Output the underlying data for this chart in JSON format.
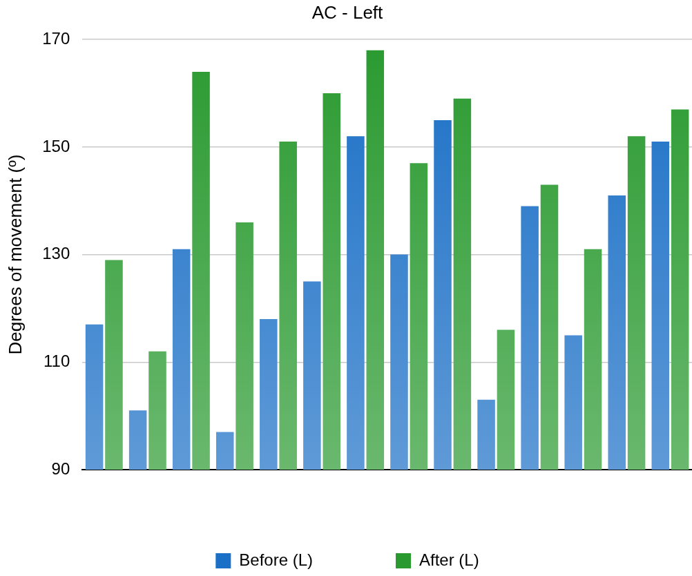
{
  "chart_data": {
    "type": "bar",
    "title": "AC - Left",
    "ylabel": "Degrees of movement (º)",
    "categories": [
      null,
      null,
      null,
      null,
      null,
      null,
      null,
      null,
      null,
      null,
      null,
      null,
      null,
      null
    ],
    "series": [
      {
        "name": "Before (L)",
        "color": "#1a6fc6",
        "values": [
          117,
          101,
          131,
          97,
          118,
          125,
          152,
          130,
          155,
          103,
          139,
          115,
          141,
          151
        ]
      },
      {
        "name": "After (L)",
        "color": "#2a9a30",
        "values": [
          129,
          112,
          164,
          136,
          151,
          160,
          168,
          147,
          159,
          116,
          143,
          131,
          152,
          157
        ]
      }
    ],
    "ylim": [
      90,
      170
    ],
    "yticks": [
      90,
      110,
      130,
      150,
      170
    ],
    "grid": "y",
    "legend": "bottom",
    "tick_labels": "y"
  }
}
